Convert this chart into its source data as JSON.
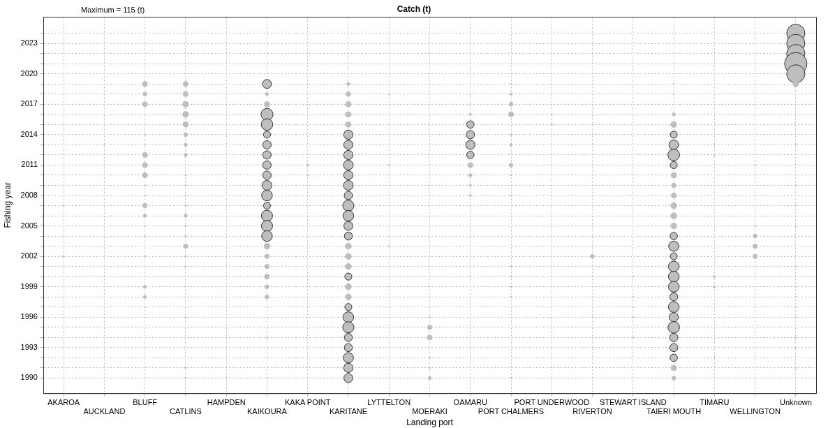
{
  "chart_data": {
    "type": "bubble",
    "title": "Catch (t)",
    "xlabel": "Landing port",
    "ylabel": "Fishing year",
    "annotations": [
      "Maximum = 115 (t)"
    ],
    "categories": [
      "AKAROA",
      "AUCKLAND",
      "BLUFF",
      "CATLINS",
      "HAMPDEN",
      "KAIKOURA",
      "KAKA POINT",
      "KARITANE",
      "LYTTELTON",
      "MOERAKI",
      "OAMARU",
      "PORT CHALMERS",
      "PORT UNDERWOOD",
      "RIVERTON",
      "STEWART ISLAND",
      "TAIERI MOUTH",
      "TIMARU",
      "WELLINGTON",
      "Unknown"
    ],
    "ylim": [
      1988.5,
      2025.6
    ],
    "yticks": [
      1990,
      {
        "value": 1991,
        "label": null
      },
      {
        "value": 1992,
        "label": null
      },
      1993,
      {
        "value": 1994,
        "label": null
      },
      {
        "value": 1995,
        "label": null
      },
      1996,
      {
        "value": 1997,
        "label": null
      },
      {
        "value": 1998,
        "label": null
      },
      1999,
      {
        "value": 2000,
        "label": null
      },
      {
        "value": 2001,
        "label": null
      },
      2002,
      {
        "value": 2003,
        "label": null
      },
      {
        "value": 2004,
        "label": null
      },
      2005,
      {
        "value": 2006,
        "label": null
      },
      {
        "value": 2007,
        "label": null
      },
      2008,
      {
        "value": 2009,
        "label": null
      },
      {
        "value": 2010,
        "label": null
      },
      2011,
      {
        "value": 2012,
        "label": null
      },
      {
        "value": 2013,
        "label": null
      },
      2014,
      {
        "value": 2015,
        "label": null
      },
      {
        "value": 2016,
        "label": null
      },
      2017,
      {
        "value": 2018,
        "label": null
      },
      {
        "value": 2019,
        "label": null
      },
      2020,
      {
        "value": 2021,
        "label": null
      },
      {
        "value": 2022,
        "label": null
      },
      2023,
      {
        "value": 2024,
        "label": null
      }
    ],
    "grid": true,
    "legend": false,
    "marker": "circle",
    "series": [
      {
        "color": "#bebebe",
        "x": [
          "AKAROA",
          "AKAROA"
        ],
        "values": [
          2007,
          2002
        ],
        "sizes": [
          0.003,
          0.003
        ]
      },
      {
        "color": "#bebebe",
        "x": [
          "AUCKLAND"
        ],
        "values": [
          2013
        ],
        "sizes": [
          0.003
        ]
      },
      {
        "color": "#bebebe",
        "x": [
          "BLUFF",
          "BLUFF",
          "BLUFF",
          "BLUFF",
          "BLUFF",
          "BLUFF",
          "BLUFF",
          "BLUFF",
          "BLUFF",
          "BLUFF",
          "BLUFF",
          "BLUFF",
          "BLUFF",
          "BLUFF",
          "BLUFF",
          "BLUFF",
          "BLUFF",
          "BLUFF"
        ],
        "values": [
          2019,
          2018,
          2017,
          2014,
          2013,
          2012,
          2011,
          2010,
          2009,
          2008,
          2007,
          2006,
          2005,
          2004,
          2002,
          1999,
          1998,
          1997
        ],
        "sizes": [
          0.05,
          0.03,
          0.05,
          0.003,
          0.003,
          0.05,
          0.05,
          0.05,
          0.003,
          0.003,
          0.04,
          0.02,
          0.003,
          0.003,
          0.003,
          0.02,
          0.02,
          0.003
        ]
      },
      {
        "color": "#bebebe",
        "x": [
          "CATLINS",
          "CATLINS",
          "CATLINS",
          "CATLINS",
          "CATLINS",
          "CATLINS",
          "CATLINS",
          "CATLINS",
          "CATLINS",
          "CATLINS",
          "CATLINS",
          "CATLINS",
          "CATLINS",
          "CATLINS",
          "CATLINS",
          "CATLINS",
          "CATLINS",
          "CATLINS",
          "CATLINS",
          "CATLINS",
          "CATLINS"
        ],
        "values": [
          2019,
          2018,
          2017,
          2016,
          2015,
          2014,
          2013,
          2012,
          2010,
          2009,
          2008,
          2007,
          2006,
          2005,
          2004,
          2003,
          2002,
          2001,
          1996,
          1991,
          1990
        ],
        "sizes": [
          0.05,
          0.05,
          0.07,
          0.07,
          0.06,
          0.03,
          0.02,
          0.02,
          0.003,
          0.003,
          0.003,
          0.003,
          0.02,
          0.003,
          0.003,
          0.04,
          0.003,
          0.003,
          0.003,
          0.003,
          0.003
        ]
      },
      {
        "color": "#bebebe",
        "x": [
          "HAMPDEN"
        ],
        "values": [
          1990
        ],
        "sizes": [
          0.003
        ]
      },
      {
        "color": "#bebebe",
        "x": [
          "KAIKOURA",
          "KAIKOURA",
          "KAIKOURA",
          "KAIKOURA",
          "KAIKOURA",
          "KAIKOURA",
          "KAIKOURA",
          "KAIKOURA",
          "KAIKOURA",
          "KAIKOURA",
          "KAIKOURA",
          "KAIKOURA",
          "KAIKOURA",
          "KAIKOURA",
          "KAIKOURA",
          "KAIKOURA",
          "KAIKOURA",
          "KAIKOURA",
          "KAIKOURA",
          "KAIKOURA",
          "KAIKOURA",
          "KAIKOURA",
          "KAIKOURA",
          "KAIKOURA"
        ],
        "values": [
          2019,
          2018,
          2017,
          2016,
          2015,
          2014,
          2013,
          2012,
          2011,
          2010,
          2009,
          2008,
          2007,
          2006,
          2005,
          2004,
          2003,
          2002,
          2001,
          2000,
          1999,
          1998,
          1994,
          1990
        ],
        "sizes": [
          0.16,
          0.02,
          0.06,
          0.29,
          0.27,
          0.1,
          0.14,
          0.14,
          0.14,
          0.14,
          0.19,
          0.23,
          0.1,
          0.25,
          0.25,
          0.23,
          0.07,
          0.04,
          0.04,
          0.05,
          0.03,
          0.03,
          0.003,
          0.003
        ]
      },
      {
        "color": "#bebebe",
        "x": [
          "KAKA POINT",
          "KAKA POINT"
        ],
        "values": [
          2011,
          2010
        ],
        "sizes": [
          0.01,
          0.003
        ]
      },
      {
        "color": "#bebebe",
        "x": [
          "KARITANE",
          "KARITANE",
          "KARITANE",
          "KARITANE",
          "KARITANE",
          "KARITANE",
          "KARITANE",
          "KARITANE",
          "KARITANE",
          "KARITANE",
          "KARITANE",
          "KARITANE",
          "KARITANE",
          "KARITANE",
          "KARITANE",
          "KARITANE",
          "KARITANE",
          "KARITANE",
          "KARITANE",
          "KARITANE",
          "KARITANE",
          "KARITANE",
          "KARITANE",
          "KARITANE",
          "KARITANE",
          "KARITANE",
          "KARITANE",
          "KARITANE",
          "KARITANE",
          "KARITANE"
        ],
        "values": [
          2019,
          2018,
          2017,
          2016,
          2015,
          2014,
          2013,
          2012,
          2011,
          2010,
          2009,
          2008,
          2007,
          2006,
          2005,
          2004,
          2003,
          2002,
          2001,
          2000,
          1999,
          1998,
          1997,
          1996,
          1995,
          1994,
          1993,
          1992,
          1991,
          1990
        ],
        "sizes": [
          0.02,
          0.04,
          0.06,
          0.06,
          0.06,
          0.17,
          0.17,
          0.17,
          0.19,
          0.17,
          0.19,
          0.14,
          0.25,
          0.23,
          0.16,
          0.13,
          0.07,
          0.07,
          0.07,
          0.1,
          0.07,
          0.07,
          0.1,
          0.23,
          0.25,
          0.13,
          0.13,
          0.21,
          0.17,
          0.16
        ]
      },
      {
        "color": "#bebebe",
        "x": [
          "LYTTELTON",
          "LYTTELTON",
          "LYTTELTON"
        ],
        "values": [
          2018,
          2011,
          2003
        ],
        "sizes": [
          0.003,
          0.003,
          0.003
        ]
      },
      {
        "color": "#bebebe",
        "x": [
          "MOERAKI",
          "MOERAKI",
          "MOERAKI",
          "MOERAKI",
          "MOERAKI",
          "MOERAKI"
        ],
        "values": [
          1996,
          1995,
          1994,
          1992,
          1991,
          1990
        ],
        "sizes": [
          0.003,
          0.04,
          0.05,
          0.003,
          0.003,
          0.02
        ]
      },
      {
        "color": "#bebebe",
        "x": [
          "OAMARU",
          "OAMARU",
          "OAMARU",
          "OAMARU",
          "OAMARU",
          "OAMARU",
          "OAMARU",
          "OAMARU",
          "OAMARU",
          "OAMARU",
          "OAMARU",
          "OAMARU",
          "OAMARU"
        ],
        "values": [
          2018,
          2017,
          2016,
          2015,
          2014,
          2013,
          2012,
          2011,
          2010,
          2009,
          2008,
          2007,
          2000
        ],
        "sizes": [
          0.003,
          0.003,
          0.01,
          0.11,
          0.14,
          0.17,
          0.11,
          0.05,
          0.02,
          0.01,
          0.01,
          0.003,
          0.003
        ]
      },
      {
        "color": "#bebebe",
        "x": [
          "PORT CHALMERS",
          "PORT CHALMERS",
          "PORT CHALMERS",
          "PORT CHALMERS",
          "PORT CHALMERS",
          "PORT CHALMERS",
          "PORT CHALMERS",
          "PORT CHALMERS",
          "PORT CHALMERS",
          "PORT CHALMERS",
          "PORT CHALMERS",
          "PORT CHALMERS",
          "PORT CHALMERS",
          "PORT CHALMERS"
        ],
        "values": [
          2019,
          2018,
          2017,
          2016,
          2014,
          2013,
          2011,
          2010,
          2008,
          2001,
          2000,
          1999,
          1998,
          1990
        ],
        "sizes": [
          0.003,
          0.01,
          0.03,
          0.05,
          0.003,
          0.01,
          0.03,
          0.003,
          0.003,
          0.003,
          0.003,
          0.003,
          0.003,
          0.003
        ]
      },
      {
        "color": "#bebebe",
        "x": [
          "PORT UNDERWOOD",
          "PORT UNDERWOOD"
        ],
        "values": [
          2016,
          2015
        ],
        "sizes": [
          0.003,
          0.003
        ]
      },
      {
        "color": "#bebebe",
        "x": [
          "RIVERTON",
          "RIVERTON"
        ],
        "values": [
          2002,
          1996
        ],
        "sizes": [
          0.03,
          0.003
        ]
      },
      {
        "color": "#bebebe",
        "x": [
          "STEWART ISLAND",
          "STEWART ISLAND",
          "STEWART ISLAND",
          "STEWART ISLAND",
          "STEWART ISLAND"
        ],
        "values": [
          2000,
          1998,
          1997,
          1996,
          1994
        ],
        "sizes": [
          0.003,
          0.003,
          0.003,
          0.003,
          0.003
        ]
      },
      {
        "color": "#bebebe",
        "x": [
          "TAIERI MOUTH",
          "TAIERI MOUTH",
          "TAIERI MOUTH",
          "TAIERI MOUTH",
          "TAIERI MOUTH",
          "TAIERI MOUTH",
          "TAIERI MOUTH",
          "TAIERI MOUTH",
          "TAIERI MOUTH",
          "TAIERI MOUTH",
          "TAIERI MOUTH",
          "TAIERI MOUTH",
          "TAIERI MOUTH",
          "TAIERI MOUTH",
          "TAIERI MOUTH",
          "TAIERI MOUTH",
          "TAIERI MOUTH",
          "TAIERI MOUTH",
          "TAIERI MOUTH",
          "TAIERI MOUTH",
          "TAIERI MOUTH",
          "TAIERI MOUTH",
          "TAIERI MOUTH",
          "TAIERI MOUTH",
          "TAIERI MOUTH",
          "TAIERI MOUTH",
          "TAIERI MOUTH",
          "TAIERI MOUTH",
          "TAIERI MOUTH"
        ],
        "values": [
          2019,
          2018,
          2016,
          2015,
          2014,
          2013,
          2012,
          2011,
          2010,
          2009,
          2008,
          2007,
          2006,
          2005,
          2004,
          2003,
          2002,
          2001,
          2000,
          1999,
          1998,
          1997,
          1996,
          1995,
          1994,
          1993,
          1992,
          1991,
          1990
        ],
        "sizes": [
          0.003,
          0.003,
          0.02,
          0.07,
          0.1,
          0.19,
          0.27,
          0.1,
          0.06,
          0.04,
          0.05,
          0.07,
          0.07,
          0.07,
          0.11,
          0.21,
          0.1,
          0.23,
          0.23,
          0.23,
          0.13,
          0.23,
          0.17,
          0.27,
          0.14,
          0.13,
          0.11,
          0.06,
          0.03
        ]
      },
      {
        "color": "#bebebe",
        "x": [
          "TIMARU",
          "TIMARU",
          "TIMARU",
          "TIMARU",
          "TIMARU"
        ],
        "values": [
          2013,
          2012,
          2000,
          1999,
          1992
        ],
        "sizes": [
          0.003,
          0.003,
          0.01,
          0.01,
          0.003
        ]
      },
      {
        "color": "#bebebe",
        "x": [
          "WELLINGTON",
          "WELLINGTON",
          "WELLINGTON",
          "WELLINGTON",
          "WELLINGTON"
        ],
        "values": [
          2011,
          2005,
          2004,
          2003,
          2002
        ],
        "sizes": [
          0.003,
          0.003,
          0.03,
          0.04,
          0.04
        ]
      },
      {
        "color": "#bebebe",
        "x": [
          "Unknown",
          "Unknown",
          "Unknown",
          "Unknown",
          "Unknown",
          "Unknown",
          "Unknown",
          "Unknown",
          "Unknown",
          "Unknown",
          "Unknown",
          "Unknown",
          "Unknown",
          "Unknown",
          "Unknown",
          "Unknown",
          "Unknown",
          "Unknown"
        ],
        "values": [
          2024,
          2023,
          2022,
          2021,
          2020,
          2019,
          2013,
          2009,
          2007,
          2005,
          2001,
          1999,
          1998,
          1997,
          1996,
          1994,
          1993,
          1991
        ],
        "sizes": [
          0.66,
          0.66,
          0.66,
          1,
          0.66,
          0.06,
          0.003,
          0.003,
          0.003,
          0.003,
          0.003,
          0.003,
          0.003,
          0.003,
          0.003,
          0.003,
          0.003,
          0.003
        ]
      }
    ]
  }
}
